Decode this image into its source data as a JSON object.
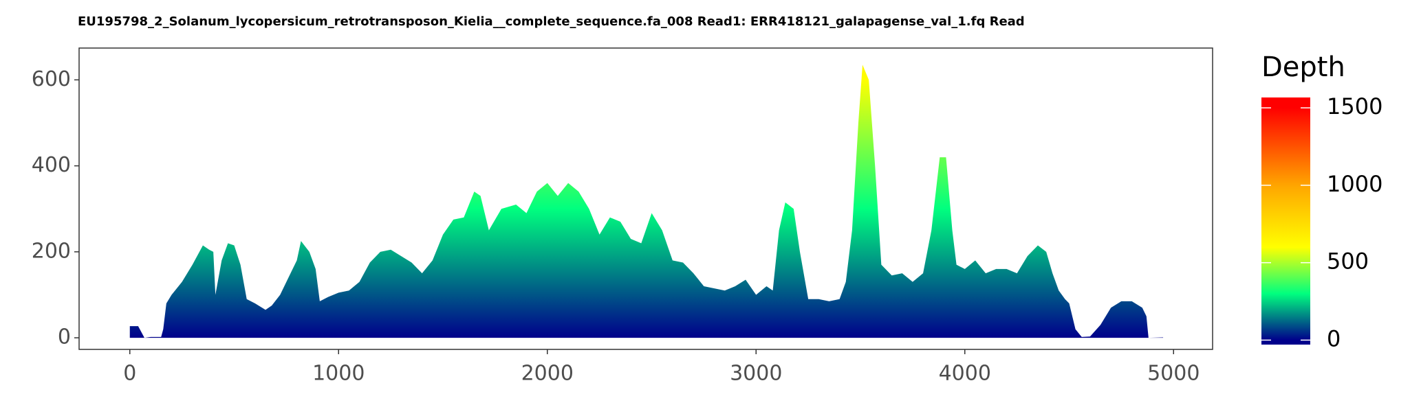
{
  "chart_data": {
    "type": "area",
    "title": "EU195798_2_Solanum_lycopersicum_retrotransposon_Kielia__complete_sequence.fa_008   Read1: ERR418121_galapagense_val_1.fq   Read",
    "x": [
      0,
      40,
      70,
      100,
      150,
      160,
      175,
      200,
      250,
      300,
      350,
      380,
      400,
      410,
      440,
      470,
      500,
      530,
      560,
      600,
      650,
      680,
      720,
      760,
      800,
      820,
      860,
      890,
      910,
      950,
      1000,
      1050,
      1100,
      1150,
      1200,
      1250,
      1300,
      1350,
      1400,
      1450,
      1500,
      1550,
      1600,
      1650,
      1680,
      1720,
      1780,
      1850,
      1900,
      1950,
      2000,
      2050,
      2100,
      2150,
      2200,
      2250,
      2300,
      2350,
      2400,
      2450,
      2500,
      2550,
      2600,
      2650,
      2700,
      2750,
      2800,
      2850,
      2900,
      2950,
      3000,
      3050,
      3080,
      3110,
      3140,
      3180,
      3210,
      3250,
      3300,
      3350,
      3400,
      3430,
      3460,
      3490,
      3510,
      3540,
      3570,
      3600,
      3650,
      3700,
      3750,
      3800,
      3840,
      3880,
      3910,
      3940,
      3960,
      4000,
      4050,
      4100,
      4150,
      4200,
      4250,
      4300,
      4350,
      4390,
      4420,
      4450,
      4480,
      4500,
      4530,
      4560,
      4600,
      4650,
      4700,
      4750,
      4800,
      4850,
      4870,
      4880,
      4950
    ],
    "values": [
      27,
      27,
      0,
      2,
      2,
      20,
      80,
      100,
      130,
      170,
      215,
      205,
      200,
      100,
      180,
      220,
      215,
      170,
      90,
      80,
      65,
      75,
      100,
      140,
      180,
      225,
      200,
      160,
      85,
      95,
      105,
      110,
      130,
      175,
      200,
      205,
      190,
      175,
      150,
      180,
      240,
      275,
      280,
      340,
      330,
      250,
      300,
      310,
      290,
      340,
      360,
      330,
      360,
      340,
      300,
      240,
      280,
      270,
      230,
      220,
      290,
      250,
      180,
      175,
      150,
      120,
      115,
      110,
      120,
      135,
      100,
      120,
      110,
      250,
      315,
      300,
      200,
      90,
      90,
      85,
      90,
      130,
      250,
      500,
      635,
      600,
      400,
      170,
      145,
      150,
      130,
      150,
      250,
      420,
      420,
      250,
      170,
      160,
      180,
      150,
      160,
      160,
      150,
      190,
      215,
      200,
      150,
      110,
      90,
      80,
      20,
      2,
      3,
      30,
      70,
      85,
      85,
      70,
      50,
      0,
      1
    ],
    "xlim": [
      -243,
      5187
    ],
    "ylim": [
      -27,
      674
    ],
    "xticks": [
      0,
      1000,
      2000,
      3000,
      4000,
      5000
    ],
    "yticks": [
      0,
      200,
      400,
      600
    ],
    "legend_title": "Depth",
    "clim": [
      -29,
      1567
    ],
    "cticks": [
      0,
      500,
      1000,
      1500
    ],
    "color_stops": [
      {
        "value": 0,
        "color": "#00008b"
      },
      {
        "value": 300,
        "color": "#00ff7f"
      },
      {
        "value": 600,
        "color": "#ffff00"
      },
      {
        "value": 1000,
        "color": "#ffa500"
      },
      {
        "value": 1500,
        "color": "#ff0000"
      }
    ]
  }
}
